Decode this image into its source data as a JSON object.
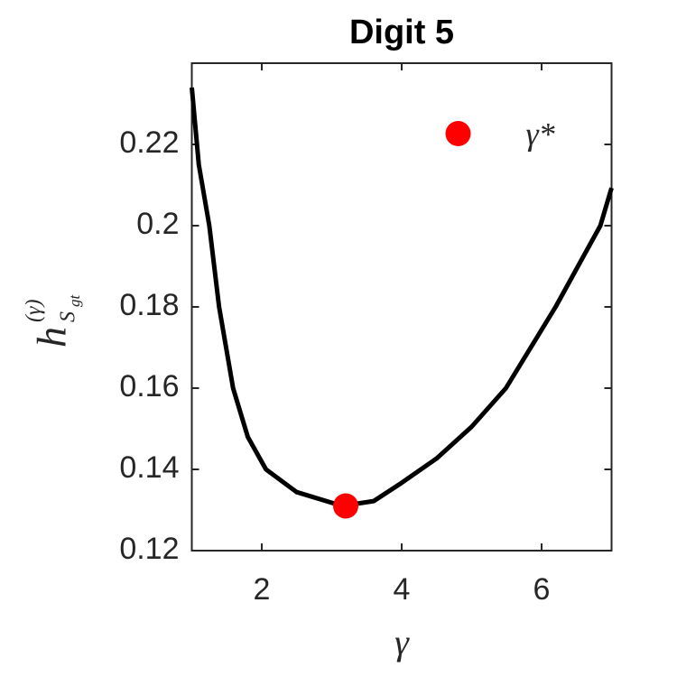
{
  "chart_data": {
    "type": "line",
    "title": "Digit 5",
    "xlabel": "γ",
    "ylabel": {
      "base": "h",
      "sup": "(γ)",
      "sub": "S",
      "subsub": "gt"
    },
    "x": [
      1,
      1.1,
      1.25,
      1.39,
      1.59,
      1.8,
      2.06,
      2.5,
      3.15,
      3.6,
      4,
      4.5,
      5,
      5.49,
      6.2,
      6.84,
      7
    ],
    "series": [
      {
        "color": "#000000",
        "values": [
          0.234,
          0.215,
          0.2,
          0.18,
          0.16,
          0.148,
          0.14,
          0.1344,
          0.131,
          0.1322,
          0.1367,
          0.1427,
          0.1505,
          0.16,
          0.18,
          0.2,
          0.2093
        ]
      }
    ],
    "markers": {
      "name": "γ*",
      "color": "#ff0000",
      "x": [
        3.2
      ],
      "values": [
        0.131
      ]
    },
    "legend": "northeast",
    "xlim": [
      1,
      7
    ],
    "xticks": [
      2,
      4,
      6
    ],
    "ylim": [
      0.12,
      0.24
    ],
    "yticks": [
      0.12,
      0.14,
      0.16,
      0.18,
      0.2,
      0.22
    ]
  }
}
